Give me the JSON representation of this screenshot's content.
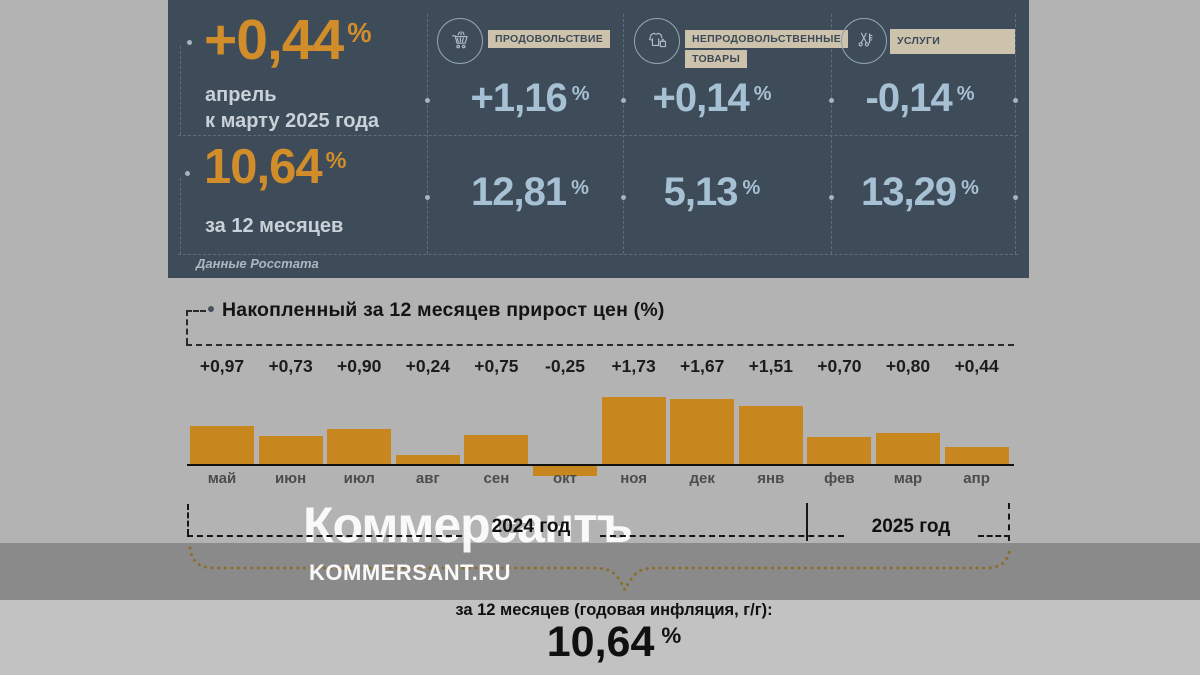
{
  "page_bg": "#b3b3b3",
  "percent_sign": "%",
  "panel": {
    "bg": "#3e4b58",
    "accent_color": "#d28d2b",
    "value_color": "#a6c1d4",
    "headline": {
      "monthly_value": "+0,44",
      "monthly_caption_line1": "апрель",
      "monthly_caption_line2": "к марту 2025 года",
      "annual_value": "10,64",
      "annual_caption": "за 12 месяцев"
    },
    "source": "Данные Росстата",
    "categories": [
      {
        "label": "ПРОДОВОЛЬСТВИЕ",
        "icon": "cart-icon",
        "monthly": "+1,16",
        "annual": "12,81"
      },
      {
        "label": "НЕПРОДОВОЛЬСТВЕННЫЕ ТОВАРЫ",
        "icon": "clothes-icon",
        "monthly": "+0,14",
        "annual": "5,13"
      },
      {
        "label": "УСЛУГИ",
        "icon": "scissors-icon",
        "monthly": "-0,14",
        "annual": "13,29"
      }
    ]
  },
  "chart_data": {
    "type": "bar",
    "title": "Накопленный за 12 месяцев прирост цен (%)",
    "categories": [
      "май",
      "июн",
      "июл",
      "авг",
      "сен",
      "окт",
      "ноя",
      "дек",
      "янв",
      "фев",
      "мар",
      "апр"
    ],
    "values": [
      0.97,
      0.73,
      0.9,
      0.24,
      0.75,
      -0.25,
      1.73,
      1.67,
      1.51,
      0.7,
      0.8,
      0.44
    ],
    "value_labels": [
      "+0,97",
      "+0,73",
      "+0,90",
      "+0,24",
      "+0,75",
      "-0,25",
      "+1,73",
      "+1,67",
      "+1,51",
      "+0,70",
      "+0,80",
      "+0,44"
    ],
    "bar_color": "#c8861f",
    "baseline": 0,
    "ylim": [
      -0.25,
      1.73
    ],
    "grid": false,
    "year_groups": [
      "2024 год",
      "2025 год"
    ],
    "annotation_caption": "за 12 месяцев (годовая инфляция, г/г):",
    "annotation_value": "10,64"
  },
  "watermark": {
    "brand": "Коммерсантъ",
    "site": "KOMMERSANT.RU"
  }
}
